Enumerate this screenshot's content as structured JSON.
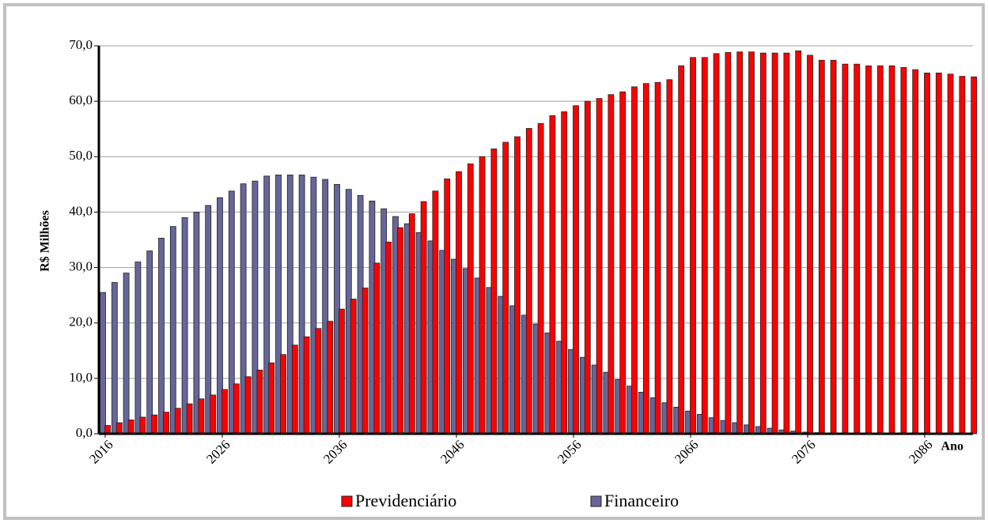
{
  "chart_data": {
    "type": "bar",
    "y_label": "R$ Milhões",
    "x_label": "Ano",
    "categories": [
      "2016",
      null,
      null,
      null,
      null,
      null,
      null,
      null,
      null,
      null,
      "2026",
      null,
      null,
      null,
      null,
      null,
      null,
      null,
      null,
      null,
      "2036",
      null,
      null,
      null,
      null,
      null,
      null,
      null,
      null,
      null,
      "2046",
      null,
      null,
      null,
      null,
      null,
      null,
      null,
      null,
      null,
      "2056",
      null,
      null,
      null,
      null,
      null,
      null,
      null,
      null,
      null,
      "2066",
      null,
      null,
      null,
      null,
      null,
      null,
      null,
      null,
      null,
      "2076",
      null,
      null,
      null,
      null,
      null,
      null,
      null,
      null,
      null,
      "2086",
      null,
      null,
      null,
      null
    ],
    "series": [
      {
        "name": "Financeiro",
        "color": "#66669a",
        "values": [
          25.5,
          27.3,
          29.0,
          31.0,
          33.0,
          35.3,
          37.4,
          39.0,
          40.0,
          41.2,
          42.6,
          43.8,
          45.1,
          45.6,
          46.5,
          46.7,
          46.7,
          46.7,
          46.3,
          45.9,
          45.0,
          44.1,
          43.0,
          42.0,
          40.6,
          39.2,
          37.9,
          36.3,
          34.8,
          33.1,
          31.5,
          29.8,
          28.1,
          26.4,
          24.8,
          23.1,
          21.4,
          19.8,
          18.2,
          16.7,
          15.2,
          13.8,
          12.4,
          11.1,
          9.8,
          8.6,
          7.5,
          6.5,
          5.6,
          4.8,
          4.1,
          3.5,
          2.9,
          2.4,
          2.0,
          1.6,
          1.3,
          1.0,
          0.7,
          0.5,
          0.3,
          0.2,
          0.1,
          0.1,
          0,
          0,
          0,
          0,
          0,
          0,
          0,
          0,
          0,
          0,
          0
        ]
      },
      {
        "name": "Previdenciário",
        "color": "#ff0000",
        "values": [
          1.5,
          2.0,
          2.5,
          3.0,
          3.4,
          3.9,
          4.6,
          5.4,
          6.3,
          7.0,
          8.0,
          9.0,
          10.3,
          11.5,
          12.8,
          14.3,
          16.0,
          17.5,
          19.0,
          20.3,
          22.5,
          24.3,
          26.3,
          30.8,
          34.6,
          37.2,
          39.7,
          41.9,
          43.8,
          46.0,
          47.3,
          48.7,
          50.0,
          51.4,
          52.6,
          53.6,
          55.1,
          56.0,
          57.4,
          58.1,
          59.2,
          60.0,
          60.5,
          61.2,
          61.7,
          62.6,
          63.2,
          63.4,
          63.9,
          66.4,
          67.9,
          67.9,
          68.6,
          68.8,
          68.9,
          68.9,
          68.7,
          68.7,
          68.7,
          69.1,
          68.3,
          67.4,
          67.4,
          66.7,
          66.7,
          66.4,
          66.4,
          66.4,
          66.1,
          65.7,
          65.1,
          65.1,
          64.9,
          64.5,
          64.4
        ]
      }
    ],
    "ylim": [
      0,
      70
    ],
    "yticks": [
      {
        "value": 0,
        "label": "0,0"
      },
      {
        "value": 10,
        "label": "10,0"
      },
      {
        "value": 20,
        "label": "20,0"
      },
      {
        "value": 30,
        "label": "30,0"
      },
      {
        "value": 40,
        "label": "40,0"
      },
      {
        "value": 50,
        "label": "50,0"
      },
      {
        "value": 60,
        "label": "60,0"
      },
      {
        "value": 70,
        "label": "70,0"
      }
    ],
    "grid": true
  }
}
